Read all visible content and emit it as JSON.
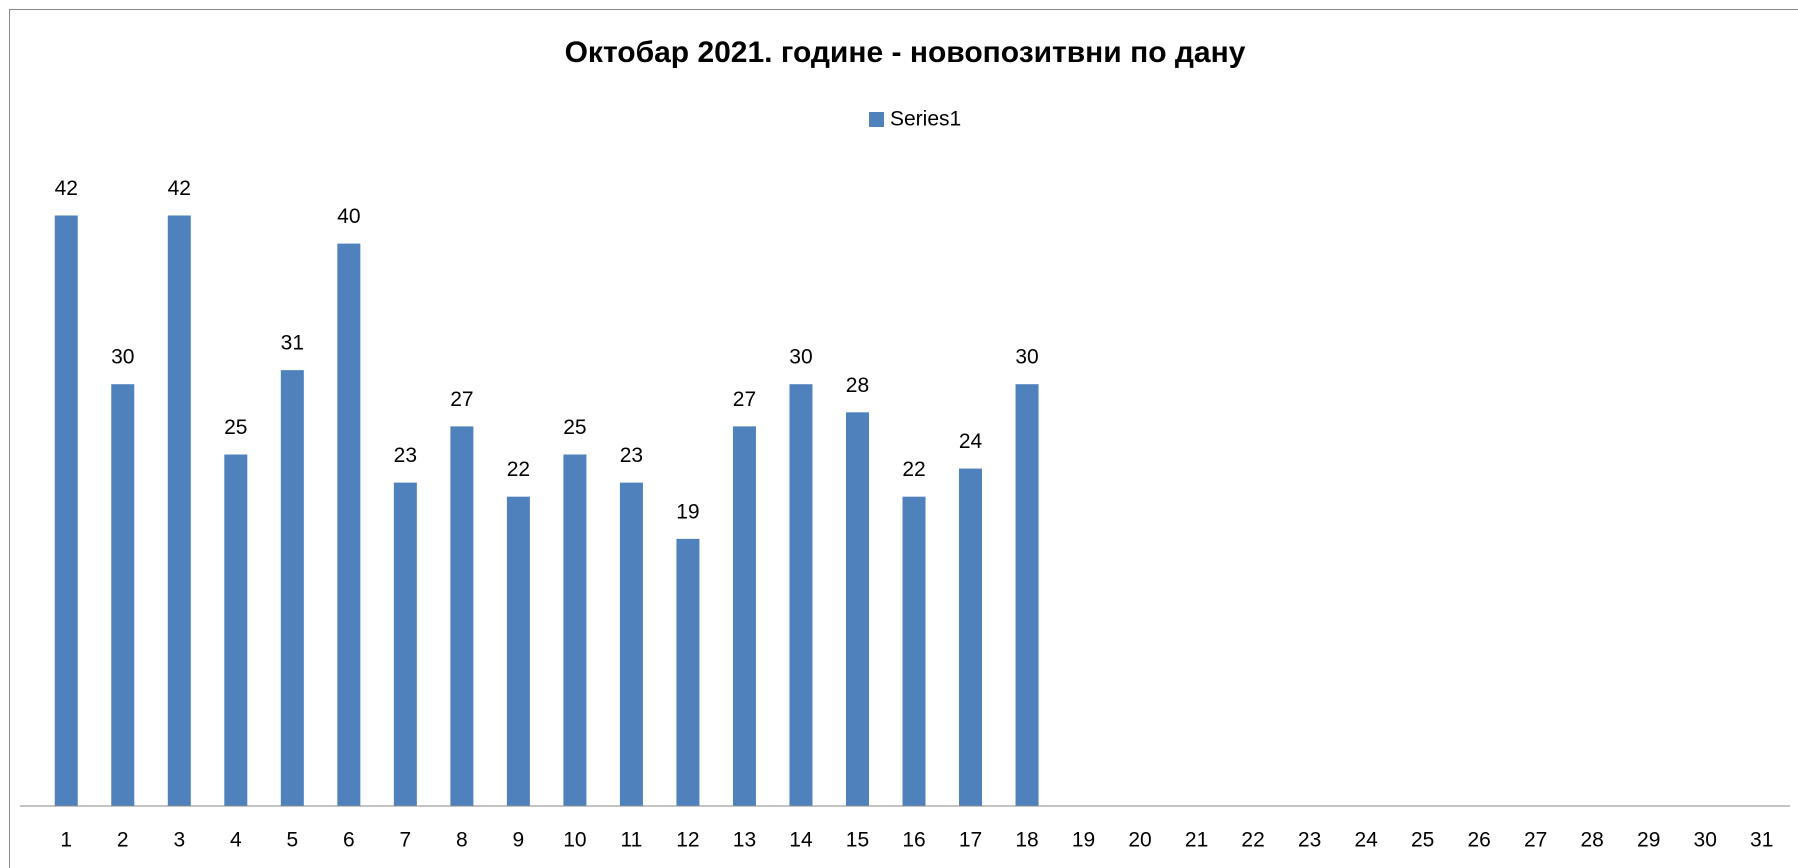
{
  "chart_data": {
    "type": "bar",
    "title": "Октобар 2021. године - новопозитвни по дану",
    "categories": [
      "1",
      "2",
      "3",
      "4",
      "5",
      "6",
      "7",
      "8",
      "9",
      "10",
      "11",
      "12",
      "13",
      "14",
      "15",
      "16",
      "17",
      "18",
      "19",
      "20",
      "21",
      "22",
      "23",
      "24",
      "25",
      "26",
      "27",
      "28",
      "29",
      "30",
      "31"
    ],
    "series": [
      {
        "name": "Series1",
        "color": "#4f81bd",
        "values": [
          42,
          30,
          42,
          25,
          31,
          40,
          23,
          27,
          22,
          25,
          23,
          19,
          27,
          30,
          28,
          22,
          24,
          30,
          null,
          null,
          null,
          null,
          null,
          null,
          null,
          null,
          null,
          null,
          null,
          null,
          null
        ]
      }
    ],
    "ylim": [
      0,
      50
    ],
    "legend": "top"
  }
}
